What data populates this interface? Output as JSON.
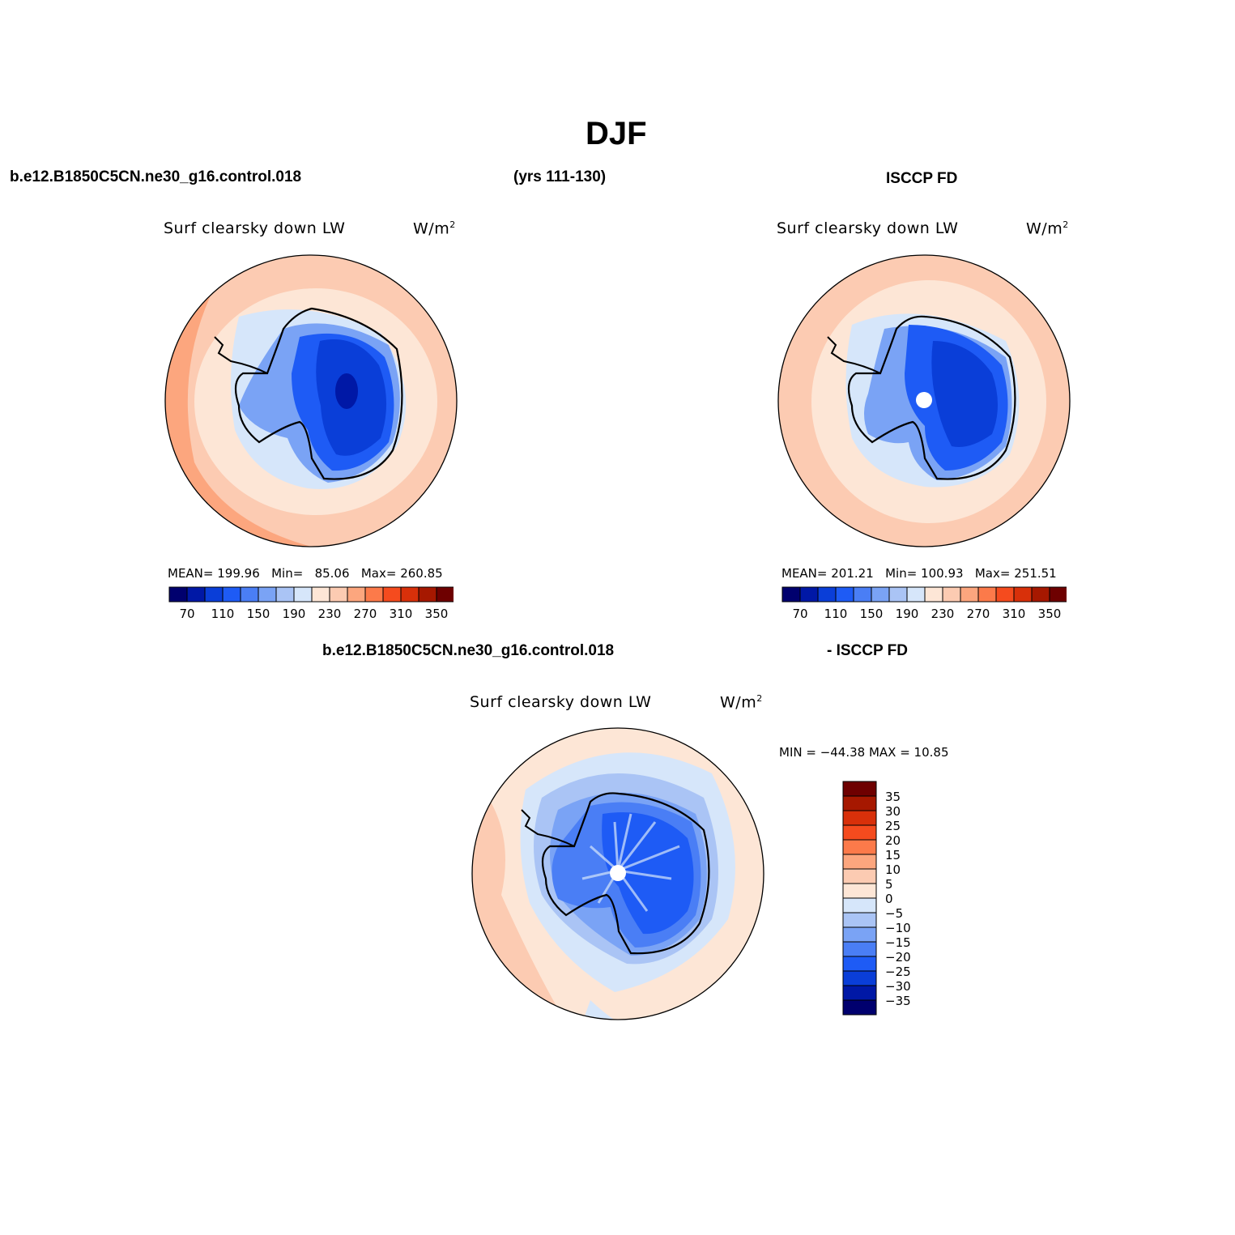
{
  "title": "DJF",
  "header": {
    "case": "b.e12.B1850C5CN.ne30_g16.control.018",
    "years": "(yrs 111-130)",
    "obs": "ISCCP FD"
  },
  "panels": [
    {
      "title": "Surf clearsky down LW",
      "units": "W/m",
      "units_exp": "2",
      "stats": {
        "mean_label": "MEAN=",
        "mean": "199.96",
        "min_label": "Min=",
        "min": "85.06",
        "max_label": "Max=",
        "max": "260.85"
      }
    },
    {
      "title": "Surf clearsky down LW",
      "units": "W/m",
      "units_exp": "2",
      "stats": {
        "mean_label": "MEAN=",
        "mean": "201.21",
        "min_label": "Min=",
        "min": "100.93",
        "max_label": "Max=",
        "max": "251.51"
      }
    }
  ],
  "colorbar": {
    "colors": [
      "#00006e",
      "#0018a6",
      "#0a3ed8",
      "#1e5bf5",
      "#4a7ef5",
      "#7aa3f5",
      "#aac4f5",
      "#d6e6fa",
      "#fde6d6",
      "#fccbb2",
      "#fca67e",
      "#fc7a4a",
      "#f54b1e",
      "#d8300a",
      "#a61800",
      "#6e0000"
    ],
    "tick_labels": [
      "70",
      "110",
      "150",
      "190",
      "230",
      "270",
      "310",
      "350"
    ]
  },
  "diff": {
    "header_case": "b.e12.B1850C5CN.ne30_g16.control.018",
    "header_obs": "- ISCCP FD",
    "title": "Surf clearsky down LW",
    "units": "W/m",
    "units_exp": "2",
    "minmax": "MIN = −44.38 MAX =   10.85",
    "colors": [
      "#6e0000",
      "#a61800",
      "#d8300a",
      "#f54b1e",
      "#fc7a4a",
      "#fca67e",
      "#fccbb2",
      "#fde6d6",
      "#d6e6fa",
      "#aac4f5",
      "#7aa3f5",
      "#4a7ef5",
      "#1e5bf5",
      "#0a3ed8",
      "#0018a6",
      "#00006e"
    ],
    "tick_labels": [
      "35",
      "30",
      "25",
      "20",
      "15",
      "10",
      "5",
      "0",
      "−5",
      "−10",
      "−15",
      "−20",
      "−25",
      "−30",
      "−35"
    ]
  }
}
